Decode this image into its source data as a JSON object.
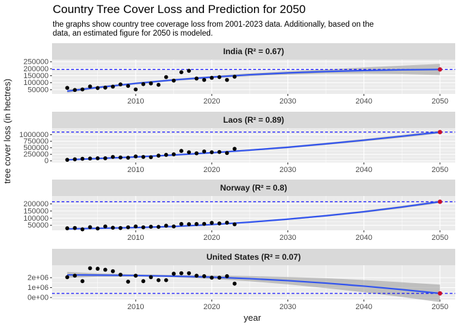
{
  "page": {
    "title": "Country Tree Cover Loss and Prediction for 2050",
    "subtitle": "the graphs show country tree coverage loss from 2001-2023 data. Additionally, based on the data, an estimated figure for 2050 is modeled.",
    "xlabel": "year",
    "ylabel": "tree cover loss (in hectres)"
  },
  "chart_data": {
    "type": "scatter",
    "title": "Country Tree Cover Loss and Prediction for 2050",
    "xlabel": "year",
    "ylabel": "tree cover loss (in hectres)",
    "xlim": [
      1999,
      2052
    ],
    "x_ticks": [
      2010,
      2020,
      2030,
      2040,
      2050
    ],
    "x_tick_labels": [
      "2010",
      "2020",
      "2030",
      "2040",
      "2050"
    ],
    "grid": true,
    "colors": {
      "points": "#000000",
      "prediction": "#c8102e",
      "fit": "#3355ee",
      "band": "#999999",
      "dashed": "#0000ff",
      "strip": "#d9d9d9",
      "panel": "#ebebeb"
    },
    "panels": [
      {
        "label": "India (R² = 0.67)",
        "ylim": [
          20000,
          265000
        ],
        "y_ticks": [
          50000,
          100000,
          150000,
          200000,
          250000
        ],
        "y_tick_labels": [
          "50000",
          "100000",
          "150000",
          "200000",
          "250000"
        ],
        "years": [
          2001,
          2002,
          2003,
          2004,
          2005,
          2006,
          2007,
          2008,
          2009,
          2010,
          2011,
          2012,
          2013,
          2014,
          2015,
          2016,
          2017,
          2018,
          2019,
          2020,
          2021,
          2022,
          2023
        ],
        "values": [
          63000,
          48000,
          52000,
          73000,
          62000,
          65000,
          72000,
          88000,
          77000,
          52000,
          90000,
          95000,
          85000,
          140000,
          115000,
          175000,
          185000,
          130000,
          120000,
          135000,
          140000,
          120000,
          143000
        ],
        "fit_x": [
          2001,
          2005,
          2010,
          2015,
          2020,
          2025,
          2030,
          2035,
          2040,
          2045,
          2050
        ],
        "fit": [
          40000,
          66000,
          95000,
          120000,
          140000,
          157000,
          170000,
          180000,
          187000,
          192000,
          195000
        ],
        "band": [
          12000,
          8000,
          7000,
          7000,
          8000,
          10000,
          12000,
          15000,
          22000,
          30000,
          40000
        ],
        "prediction": {
          "year": 2050,
          "value": 195000
        }
      },
      {
        "label": "Laos (R² = 0.89)",
        "ylim": [
          -60000,
          1250000
        ],
        "y_ticks": [
          0,
          250000,
          500000,
          750000,
          1000000
        ],
        "y_tick_labels": [
          "0",
          "250000",
          "500000",
          "750000",
          "1000000"
        ],
        "years": [
          2001,
          2002,
          2003,
          2004,
          2005,
          2006,
          2007,
          2008,
          2009,
          2010,
          2011,
          2012,
          2013,
          2014,
          2015,
          2016,
          2017,
          2018,
          2019,
          2020,
          2021,
          2022,
          2023
        ],
        "values": [
          40000,
          60000,
          80000,
          90000,
          100000,
          100000,
          150000,
          130000,
          120000,
          170000,
          150000,
          140000,
          200000,
          230000,
          250000,
          380000,
          330000,
          290000,
          360000,
          330000,
          340000,
          300000,
          460000
        ],
        "fit_x": [
          2001,
          2005,
          2010,
          2015,
          2020,
          2025,
          2030,
          2035,
          2040,
          2045,
          2050
        ],
        "fit": [
          40000,
          90000,
          150000,
          225000,
          310000,
          410000,
          520000,
          650000,
          790000,
          940000,
          1100000
        ],
        "band": [
          25000,
          20000,
          20000,
          20000,
          22000,
          30000,
          35000,
          40000,
          45000,
          50000,
          55000
        ],
        "prediction": {
          "year": 2050,
          "value": 1100000
        }
      },
      {
        "label": "Norway (R² = 0.8)",
        "ylim": [
          15000,
          255000
        ],
        "y_ticks": [
          50000,
          100000,
          150000,
          200000
        ],
        "y_tick_labels": [
          "50000",
          "100000",
          "150000",
          "200000"
        ],
        "years": [
          2001,
          2002,
          2003,
          2004,
          2005,
          2006,
          2007,
          2008,
          2009,
          2010,
          2011,
          2012,
          2013,
          2014,
          2015,
          2016,
          2017,
          2018,
          2019,
          2020,
          2021,
          2022,
          2023
        ],
        "values": [
          29000,
          31000,
          22000,
          37000,
          28000,
          42000,
          33000,
          31000,
          36000,
          42000,
          36000,
          40000,
          39000,
          47000,
          42000,
          59000,
          58000,
          59000,
          60000,
          67000,
          63000,
          68000,
          57000
        ],
        "fit_x": [
          2001,
          2005,
          2010,
          2015,
          2020,
          2025,
          2030,
          2035,
          2040,
          2045,
          2050
        ],
        "fit": [
          25000,
          29000,
          34000,
          42000,
          55000,
          72000,
          93000,
          117000,
          145000,
          178000,
          215000
        ],
        "band": [
          4000,
          3000,
          3000,
          3000,
          3500,
          4000,
          5000,
          6000,
          7000,
          8000,
          9000
        ],
        "prediction": {
          "year": 2050,
          "value": 215000
        }
      },
      {
        "label": "United States (R² = 0.07)",
        "ylim": [
          -200000,
          3250000
        ],
        "y_ticks": [
          0,
          1000000,
          2000000
        ],
        "y_tick_labels": [
          "0e+00",
          "1e+06",
          "2e+06"
        ],
        "years": [
          2001,
          2002,
          2003,
          2004,
          2005,
          2006,
          2007,
          2008,
          2009,
          2010,
          2011,
          2012,
          2013,
          2014,
          2015,
          2016,
          2017,
          2018,
          2019,
          2020,
          2021,
          2022,
          2023
        ],
        "values": [
          2050000,
          2200000,
          1650000,
          2950000,
          2900000,
          2800000,
          2650000,
          2300000,
          1600000,
          2200000,
          1650000,
          2050000,
          1750000,
          1750000,
          2400000,
          2450000,
          2450000,
          2200000,
          2150000,
          2000000,
          2000000,
          2150000,
          1400000
        ],
        "fit_x": [
          2001,
          2005,
          2010,
          2015,
          2020,
          2025,
          2030,
          2035,
          2040,
          2045,
          2050
        ],
        "fit": [
          2280000,
          2260000,
          2220000,
          2150000,
          2050000,
          1900000,
          1700000,
          1450000,
          1150000,
          800000,
          420000
        ],
        "band": [
          300000,
          170000,
          120000,
          120000,
          170000,
          260000,
          370000,
          500000,
          620000,
          740000,
          880000
        ],
        "prediction": {
          "year": 2050,
          "value": 420000
        }
      }
    ]
  }
}
